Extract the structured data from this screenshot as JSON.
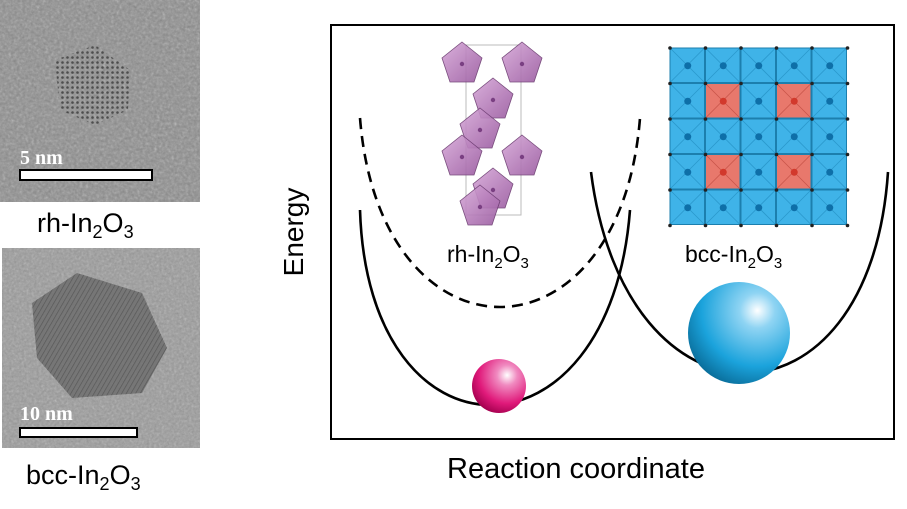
{
  "micrographs": [
    {
      "scale_label": "5 nm",
      "caption": {
        "prefix": "rh-",
        "el1": "In",
        "sub1": "2",
        "el2": "O",
        "sub2": "3"
      }
    },
    {
      "scale_label": "10 nm",
      "caption": {
        "prefix": "bcc-",
        "el1": "In",
        "sub1": "2",
        "el2": "O",
        "sub2": "3"
      }
    }
  ],
  "diagram": {
    "ylabel": "Energy",
    "xlabel": "Reaction coordinate",
    "left_phase": {
      "prefix": "rh-",
      "el1": "In",
      "sub1": "2",
      "el2": "O",
      "sub2": "3",
      "sphere_color": "#e0197a"
    },
    "right_phase": {
      "prefix": "bcc-",
      "el1": "In",
      "sub1": "2",
      "el2": "O",
      "sub2": "3",
      "sphere_color": "#1ba3dc"
    }
  }
}
